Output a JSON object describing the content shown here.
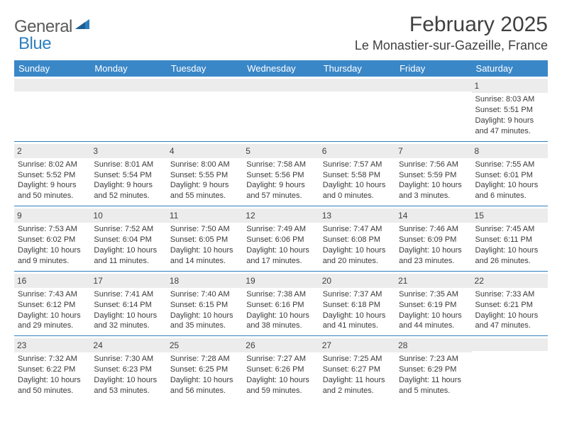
{
  "logo": {
    "part1": "General",
    "part2": "Blue"
  },
  "title": "February 2025",
  "location": "Le Monastier-sur-Gazeille, France",
  "colors": {
    "header_bg": "#3a87c8",
    "header_text": "#ffffff",
    "daynum_bg": "#ececec",
    "border": "#2e7fbf",
    "logo_gray": "#5a5a5a",
    "logo_blue": "#2e7fbf"
  },
  "weekdays": [
    "Sunday",
    "Monday",
    "Tuesday",
    "Wednesday",
    "Thursday",
    "Friday",
    "Saturday"
  ],
  "weeks": [
    [
      {
        "n": "",
        "sr": "",
        "ss": "",
        "dl": ""
      },
      {
        "n": "",
        "sr": "",
        "ss": "",
        "dl": ""
      },
      {
        "n": "",
        "sr": "",
        "ss": "",
        "dl": ""
      },
      {
        "n": "",
        "sr": "",
        "ss": "",
        "dl": ""
      },
      {
        "n": "",
        "sr": "",
        "ss": "",
        "dl": ""
      },
      {
        "n": "",
        "sr": "",
        "ss": "",
        "dl": ""
      },
      {
        "n": "1",
        "sr": "Sunrise: 8:03 AM",
        "ss": "Sunset: 5:51 PM",
        "dl": "Daylight: 9 hours and 47 minutes."
      }
    ],
    [
      {
        "n": "2",
        "sr": "Sunrise: 8:02 AM",
        "ss": "Sunset: 5:52 PM",
        "dl": "Daylight: 9 hours and 50 minutes."
      },
      {
        "n": "3",
        "sr": "Sunrise: 8:01 AM",
        "ss": "Sunset: 5:54 PM",
        "dl": "Daylight: 9 hours and 52 minutes."
      },
      {
        "n": "4",
        "sr": "Sunrise: 8:00 AM",
        "ss": "Sunset: 5:55 PM",
        "dl": "Daylight: 9 hours and 55 minutes."
      },
      {
        "n": "5",
        "sr": "Sunrise: 7:58 AM",
        "ss": "Sunset: 5:56 PM",
        "dl": "Daylight: 9 hours and 57 minutes."
      },
      {
        "n": "6",
        "sr": "Sunrise: 7:57 AM",
        "ss": "Sunset: 5:58 PM",
        "dl": "Daylight: 10 hours and 0 minutes."
      },
      {
        "n": "7",
        "sr": "Sunrise: 7:56 AM",
        "ss": "Sunset: 5:59 PM",
        "dl": "Daylight: 10 hours and 3 minutes."
      },
      {
        "n": "8",
        "sr": "Sunrise: 7:55 AM",
        "ss": "Sunset: 6:01 PM",
        "dl": "Daylight: 10 hours and 6 minutes."
      }
    ],
    [
      {
        "n": "9",
        "sr": "Sunrise: 7:53 AM",
        "ss": "Sunset: 6:02 PM",
        "dl": "Daylight: 10 hours and 9 minutes."
      },
      {
        "n": "10",
        "sr": "Sunrise: 7:52 AM",
        "ss": "Sunset: 6:04 PM",
        "dl": "Daylight: 10 hours and 11 minutes."
      },
      {
        "n": "11",
        "sr": "Sunrise: 7:50 AM",
        "ss": "Sunset: 6:05 PM",
        "dl": "Daylight: 10 hours and 14 minutes."
      },
      {
        "n": "12",
        "sr": "Sunrise: 7:49 AM",
        "ss": "Sunset: 6:06 PM",
        "dl": "Daylight: 10 hours and 17 minutes."
      },
      {
        "n": "13",
        "sr": "Sunrise: 7:47 AM",
        "ss": "Sunset: 6:08 PM",
        "dl": "Daylight: 10 hours and 20 minutes."
      },
      {
        "n": "14",
        "sr": "Sunrise: 7:46 AM",
        "ss": "Sunset: 6:09 PM",
        "dl": "Daylight: 10 hours and 23 minutes."
      },
      {
        "n": "15",
        "sr": "Sunrise: 7:45 AM",
        "ss": "Sunset: 6:11 PM",
        "dl": "Daylight: 10 hours and 26 minutes."
      }
    ],
    [
      {
        "n": "16",
        "sr": "Sunrise: 7:43 AM",
        "ss": "Sunset: 6:12 PM",
        "dl": "Daylight: 10 hours and 29 minutes."
      },
      {
        "n": "17",
        "sr": "Sunrise: 7:41 AM",
        "ss": "Sunset: 6:14 PM",
        "dl": "Daylight: 10 hours and 32 minutes."
      },
      {
        "n": "18",
        "sr": "Sunrise: 7:40 AM",
        "ss": "Sunset: 6:15 PM",
        "dl": "Daylight: 10 hours and 35 minutes."
      },
      {
        "n": "19",
        "sr": "Sunrise: 7:38 AM",
        "ss": "Sunset: 6:16 PM",
        "dl": "Daylight: 10 hours and 38 minutes."
      },
      {
        "n": "20",
        "sr": "Sunrise: 7:37 AM",
        "ss": "Sunset: 6:18 PM",
        "dl": "Daylight: 10 hours and 41 minutes."
      },
      {
        "n": "21",
        "sr": "Sunrise: 7:35 AM",
        "ss": "Sunset: 6:19 PM",
        "dl": "Daylight: 10 hours and 44 minutes."
      },
      {
        "n": "22",
        "sr": "Sunrise: 7:33 AM",
        "ss": "Sunset: 6:21 PM",
        "dl": "Daylight: 10 hours and 47 minutes."
      }
    ],
    [
      {
        "n": "23",
        "sr": "Sunrise: 7:32 AM",
        "ss": "Sunset: 6:22 PM",
        "dl": "Daylight: 10 hours and 50 minutes."
      },
      {
        "n": "24",
        "sr": "Sunrise: 7:30 AM",
        "ss": "Sunset: 6:23 PM",
        "dl": "Daylight: 10 hours and 53 minutes."
      },
      {
        "n": "25",
        "sr": "Sunrise: 7:28 AM",
        "ss": "Sunset: 6:25 PM",
        "dl": "Daylight: 10 hours and 56 minutes."
      },
      {
        "n": "26",
        "sr": "Sunrise: 7:27 AM",
        "ss": "Sunset: 6:26 PM",
        "dl": "Daylight: 10 hours and 59 minutes."
      },
      {
        "n": "27",
        "sr": "Sunrise: 7:25 AM",
        "ss": "Sunset: 6:27 PM",
        "dl": "Daylight: 11 hours and 2 minutes."
      },
      {
        "n": "28",
        "sr": "Sunrise: 7:23 AM",
        "ss": "Sunset: 6:29 PM",
        "dl": "Daylight: 11 hours and 5 minutes."
      },
      {
        "n": "",
        "sr": "",
        "ss": "",
        "dl": ""
      }
    ]
  ]
}
